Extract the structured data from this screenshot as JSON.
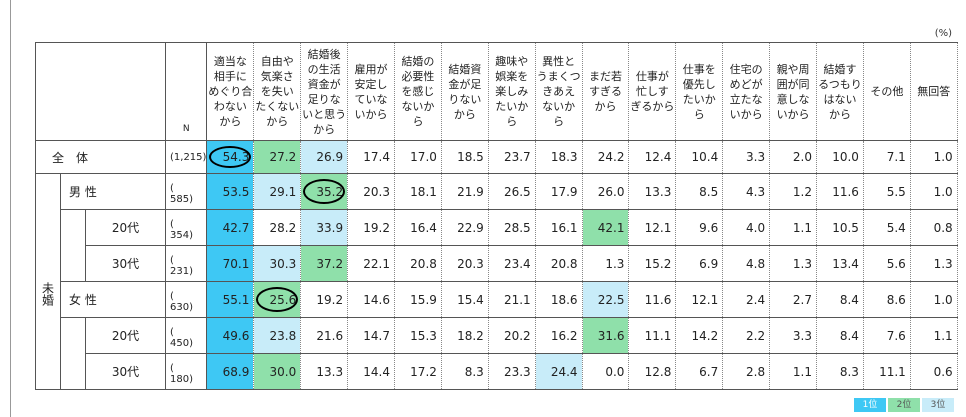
{
  "unit": "(%)",
  "header": {
    "n": "N",
    "columns": [
      "適当な\n相手に\nめぐり合\nわない\nから",
      "自由や\n気楽さ\nを失い\nたくない\nから",
      "結婚後\nの生活\n資金が\n足りな\nいと思う\nから",
      "雇用が\n安定し\nていな\nいから",
      "結婚の\n必要性\nを感じ\nないか\nら",
      "結婚資\n金が足\nりない\nから",
      "趣味や\n娯楽を\n楽しみ\nたいか\nら",
      "異性と\nうまくつ\nきあえ\nないか\nら",
      "まだ若\nすぎる\nから",
      "仕事が\n忙しす\nぎるから",
      "仕事を\n優先し\nたいか\nら",
      "住宅の\nめどが\n立たな\nいから",
      "親や周\n囲が同\n意しな\nいから",
      "結婚す\nるつもり\nはない\nから",
      "その他",
      "無回答"
    ]
  },
  "total": {
    "label": "全　体",
    "n": "(1,215)",
    "circled": 0,
    "values": [
      "54.3",
      "27.2",
      "26.9",
      "17.4",
      "17.0",
      "18.5",
      "23.7",
      "18.3",
      "24.2",
      "12.4",
      "10.4",
      "3.3",
      "2.0",
      "10.0",
      "7.1",
      "1.0"
    ]
  },
  "group": {
    "label": "未婚",
    "sections": [
      {
        "label": "男 性",
        "n": "(　585)",
        "circled": 2,
        "values": [
          "53.5",
          "29.1",
          "35.2",
          "20.3",
          "18.1",
          "21.9",
          "26.5",
          "17.9",
          "26.0",
          "13.3",
          "8.5",
          "4.3",
          "1.2",
          "11.6",
          "5.5",
          "1.0"
        ],
        "sub": [
          {
            "label": "20代",
            "n": "(　354)",
            "values": [
              "42.7",
              "28.2",
              "33.9",
              "19.2",
              "16.4",
              "22.9",
              "28.5",
              "16.1",
              "42.1",
              "12.1",
              "9.6",
              "4.0",
              "1.1",
              "10.5",
              "5.4",
              "0.8"
            ]
          },
          {
            "label": "30代",
            "n": "(　231)",
            "values": [
              "70.1",
              "30.3",
              "37.2",
              "22.1",
              "20.8",
              "20.3",
              "23.4",
              "20.8",
              "1.3",
              "15.2",
              "6.9",
              "4.8",
              "1.3",
              "13.4",
              "5.6",
              "1.3"
            ]
          }
        ]
      },
      {
        "label": "女 性",
        "n": "(　630)",
        "circled": 1,
        "values": [
          "55.1",
          "25.6",
          "19.2",
          "14.6",
          "15.9",
          "15.4",
          "21.1",
          "18.6",
          "22.5",
          "11.6",
          "12.1",
          "2.4",
          "2.7",
          "8.4",
          "8.6",
          "1.0"
        ],
        "sub": [
          {
            "label": "20代",
            "n": "(　450)",
            "values": [
              "49.6",
              "23.8",
              "21.6",
              "14.7",
              "15.3",
              "18.2",
              "20.2",
              "16.2",
              "31.6",
              "11.1",
              "14.2",
              "2.2",
              "3.3",
              "8.4",
              "7.6",
              "1.1"
            ]
          },
          {
            "label": "30代",
            "n": "(　180)",
            "values": [
              "68.9",
              "30.0",
              "13.3",
              "14.4",
              "17.2",
              "8.3",
              "23.3",
              "24.4",
              "0.0",
              "12.8",
              "6.7",
              "2.8",
              "1.1",
              "8.3",
              "11.1",
              "0.6"
            ]
          }
        ]
      }
    ]
  },
  "legend": {
    "items": [
      "1位",
      "2位",
      "3位"
    ],
    "colors": [
      "#3ec8f4",
      "#8fe0aa",
      "#c8ecf9"
    ]
  }
}
